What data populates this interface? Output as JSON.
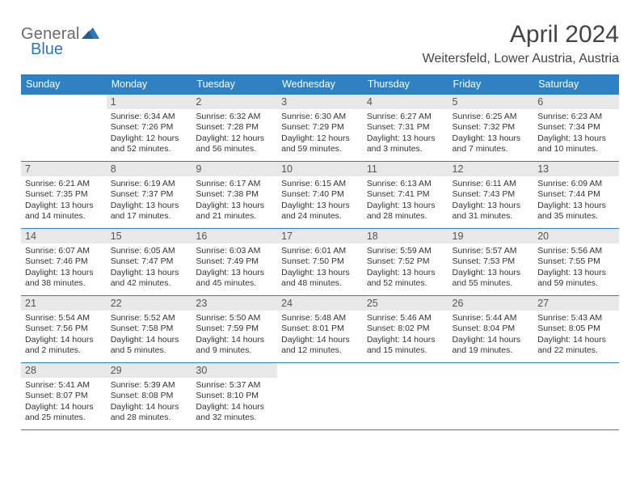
{
  "logo": {
    "word1": "General",
    "word2": "Blue",
    "color_gray": "#6b6b6b",
    "color_blue": "#2f77b8"
  },
  "title": "April 2024",
  "location": "Weitersfeld, Lower Austria, Austria",
  "colors": {
    "header_bg": "#3081c4",
    "header_fg": "#ffffff",
    "daynum_bg": "#e8e8e8",
    "border": "#3081c4",
    "page_bg": "#ffffff",
    "text": "#333333"
  },
  "day_headers": [
    "Sunday",
    "Monday",
    "Tuesday",
    "Wednesday",
    "Thursday",
    "Friday",
    "Saturday"
  ],
  "weeks": [
    [
      {
        "n": "",
        "lines": []
      },
      {
        "n": "1",
        "lines": [
          "Sunrise: 6:34 AM",
          "Sunset: 7:26 PM",
          "Daylight: 12 hours and 52 minutes."
        ]
      },
      {
        "n": "2",
        "lines": [
          "Sunrise: 6:32 AM",
          "Sunset: 7:28 PM",
          "Daylight: 12 hours and 56 minutes."
        ]
      },
      {
        "n": "3",
        "lines": [
          "Sunrise: 6:30 AM",
          "Sunset: 7:29 PM",
          "Daylight: 12 hours and 59 minutes."
        ]
      },
      {
        "n": "4",
        "lines": [
          "Sunrise: 6:27 AM",
          "Sunset: 7:31 PM",
          "Daylight: 13 hours and 3 minutes."
        ]
      },
      {
        "n": "5",
        "lines": [
          "Sunrise: 6:25 AM",
          "Sunset: 7:32 PM",
          "Daylight: 13 hours and 7 minutes."
        ]
      },
      {
        "n": "6",
        "lines": [
          "Sunrise: 6:23 AM",
          "Sunset: 7:34 PM",
          "Daylight: 13 hours and 10 minutes."
        ]
      }
    ],
    [
      {
        "n": "7",
        "lines": [
          "Sunrise: 6:21 AM",
          "Sunset: 7:35 PM",
          "Daylight: 13 hours and 14 minutes."
        ]
      },
      {
        "n": "8",
        "lines": [
          "Sunrise: 6:19 AM",
          "Sunset: 7:37 PM",
          "Daylight: 13 hours and 17 minutes."
        ]
      },
      {
        "n": "9",
        "lines": [
          "Sunrise: 6:17 AM",
          "Sunset: 7:38 PM",
          "Daylight: 13 hours and 21 minutes."
        ]
      },
      {
        "n": "10",
        "lines": [
          "Sunrise: 6:15 AM",
          "Sunset: 7:40 PM",
          "Daylight: 13 hours and 24 minutes."
        ]
      },
      {
        "n": "11",
        "lines": [
          "Sunrise: 6:13 AM",
          "Sunset: 7:41 PM",
          "Daylight: 13 hours and 28 minutes."
        ]
      },
      {
        "n": "12",
        "lines": [
          "Sunrise: 6:11 AM",
          "Sunset: 7:43 PM",
          "Daylight: 13 hours and 31 minutes."
        ]
      },
      {
        "n": "13",
        "lines": [
          "Sunrise: 6:09 AM",
          "Sunset: 7:44 PM",
          "Daylight: 13 hours and 35 minutes."
        ]
      }
    ],
    [
      {
        "n": "14",
        "lines": [
          "Sunrise: 6:07 AM",
          "Sunset: 7:46 PM",
          "Daylight: 13 hours and 38 minutes."
        ]
      },
      {
        "n": "15",
        "lines": [
          "Sunrise: 6:05 AM",
          "Sunset: 7:47 PM",
          "Daylight: 13 hours and 42 minutes."
        ]
      },
      {
        "n": "16",
        "lines": [
          "Sunrise: 6:03 AM",
          "Sunset: 7:49 PM",
          "Daylight: 13 hours and 45 minutes."
        ]
      },
      {
        "n": "17",
        "lines": [
          "Sunrise: 6:01 AM",
          "Sunset: 7:50 PM",
          "Daylight: 13 hours and 48 minutes."
        ]
      },
      {
        "n": "18",
        "lines": [
          "Sunrise: 5:59 AM",
          "Sunset: 7:52 PM",
          "Daylight: 13 hours and 52 minutes."
        ]
      },
      {
        "n": "19",
        "lines": [
          "Sunrise: 5:57 AM",
          "Sunset: 7:53 PM",
          "Daylight: 13 hours and 55 minutes."
        ]
      },
      {
        "n": "20",
        "lines": [
          "Sunrise: 5:56 AM",
          "Sunset: 7:55 PM",
          "Daylight: 13 hours and 59 minutes."
        ]
      }
    ],
    [
      {
        "n": "21",
        "lines": [
          "Sunrise: 5:54 AM",
          "Sunset: 7:56 PM",
          "Daylight: 14 hours and 2 minutes."
        ]
      },
      {
        "n": "22",
        "lines": [
          "Sunrise: 5:52 AM",
          "Sunset: 7:58 PM",
          "Daylight: 14 hours and 5 minutes."
        ]
      },
      {
        "n": "23",
        "lines": [
          "Sunrise: 5:50 AM",
          "Sunset: 7:59 PM",
          "Daylight: 14 hours and 9 minutes."
        ]
      },
      {
        "n": "24",
        "lines": [
          "Sunrise: 5:48 AM",
          "Sunset: 8:01 PM",
          "Daylight: 14 hours and 12 minutes."
        ]
      },
      {
        "n": "25",
        "lines": [
          "Sunrise: 5:46 AM",
          "Sunset: 8:02 PM",
          "Daylight: 14 hours and 15 minutes."
        ]
      },
      {
        "n": "26",
        "lines": [
          "Sunrise: 5:44 AM",
          "Sunset: 8:04 PM",
          "Daylight: 14 hours and 19 minutes."
        ]
      },
      {
        "n": "27",
        "lines": [
          "Sunrise: 5:43 AM",
          "Sunset: 8:05 PM",
          "Daylight: 14 hours and 22 minutes."
        ]
      }
    ],
    [
      {
        "n": "28",
        "lines": [
          "Sunrise: 5:41 AM",
          "Sunset: 8:07 PM",
          "Daylight: 14 hours and 25 minutes."
        ]
      },
      {
        "n": "29",
        "lines": [
          "Sunrise: 5:39 AM",
          "Sunset: 8:08 PM",
          "Daylight: 14 hours and 28 minutes."
        ]
      },
      {
        "n": "30",
        "lines": [
          "Sunrise: 5:37 AM",
          "Sunset: 8:10 PM",
          "Daylight: 14 hours and 32 minutes."
        ]
      },
      {
        "n": "",
        "lines": []
      },
      {
        "n": "",
        "lines": []
      },
      {
        "n": "",
        "lines": []
      },
      {
        "n": "",
        "lines": []
      }
    ]
  ]
}
